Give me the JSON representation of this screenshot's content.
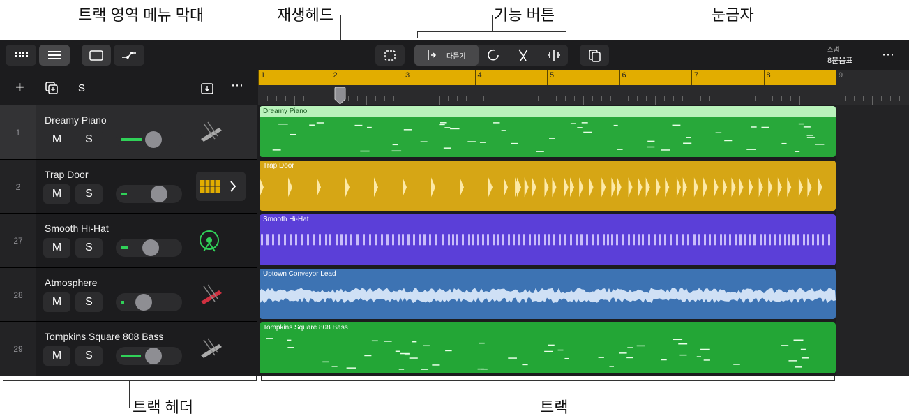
{
  "annotations": {
    "menu_bar": "트랙 영역 메뉴 막대",
    "playhead": "재생헤드",
    "function_buttons": "기능 버튼",
    "ruler": "눈금자",
    "track_header": "트랙 헤더",
    "tracks": "트랙"
  },
  "toolbar": {
    "trim": "다듬기",
    "snap_label": "스냅",
    "snap_value": "8분음표"
  },
  "header_bar": {
    "solo": "S"
  },
  "ruler": [
    1,
    2,
    3,
    4,
    5,
    6,
    7,
    8,
    9
  ],
  "tracks": [
    {
      "number": 1,
      "name": "Dreamy Piano",
      "mute": "M",
      "solo": "S",
      "region": "Dreamy Piano"
    },
    {
      "number": 2,
      "name": "Trap Door",
      "mute": "M",
      "solo": "S",
      "region": "Trap Door"
    },
    {
      "number": 27,
      "name": "Smooth Hi-Hat",
      "mute": "M",
      "solo": "S",
      "region": "Smooth Hi-Hat"
    },
    {
      "number": 28,
      "name": "Atmosphere",
      "mute": "M",
      "solo": "S",
      "region": "Uptown Conveyor Lead"
    },
    {
      "number": 29,
      "name": "Tompkins Square 808 Bass",
      "mute": "M",
      "solo": "S",
      "region": "Tompkins Square 808 Bass"
    }
  ]
}
